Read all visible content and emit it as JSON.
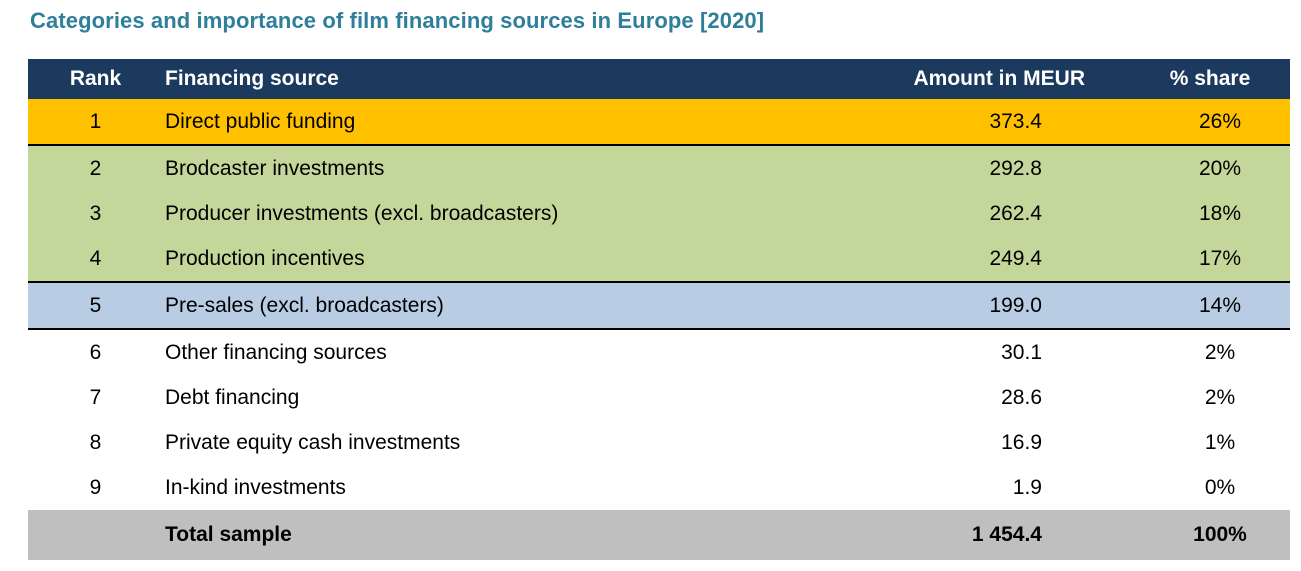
{
  "title": "Categories and importance of film financing sources in Europe [2020]",
  "colors": {
    "title_color": "#2F7E9A",
    "header_bg": "#1C3A5E",
    "header_text": "#FFFFFF",
    "row_orange": "#FFC000",
    "row_green": "#C4D79B",
    "row_blue": "#B8CCE4",
    "row_white": "#FFFFFF",
    "total_bg": "#BFBFBF",
    "border_color": "#000000"
  },
  "table": {
    "columns": [
      "Rank",
      "Financing source",
      "Amount in MEUR",
      "% share"
    ],
    "rows": [
      {
        "rank": "1",
        "source": "Direct public funding",
        "amount": "373.4",
        "share": "26%",
        "band": "orange",
        "border_bottom": true
      },
      {
        "rank": "2",
        "source": "Brodcaster investments",
        "amount": "292.8",
        "share": "20%",
        "band": "green",
        "border_bottom": false
      },
      {
        "rank": "3",
        "source": "Producer investments (excl. broadcasters)",
        "amount": "262.4",
        "share": "18%",
        "band": "green",
        "border_bottom": false
      },
      {
        "rank": "4",
        "source": "Production incentives",
        "amount": "249.4",
        "share": "17%",
        "band": "green",
        "border_bottom": true
      },
      {
        "rank": "5",
        "source": "Pre-sales (excl. broadcasters)",
        "amount": "199.0",
        "share": "14%",
        "band": "blue",
        "border_bottom": true
      },
      {
        "rank": "6",
        "source": "Other financing sources",
        "amount": "30.1",
        "share": "2%",
        "band": "white",
        "border_bottom": false
      },
      {
        "rank": "7",
        "source": "Debt financing",
        "amount": "28.6",
        "share": "2%",
        "band": "white",
        "border_bottom": false
      },
      {
        "rank": "8",
        "source": "Private equity cash investments",
        "amount": "16.9",
        "share": "1%",
        "band": "white",
        "border_bottom": false
      },
      {
        "rank": "9",
        "source": "In-kind investments",
        "amount": "1.9",
        "share": "0%",
        "band": "white",
        "border_bottom": false
      }
    ],
    "total": {
      "label": "Total sample",
      "amount": "1 454.4",
      "share": "100%"
    }
  },
  "chart_data": {
    "type": "table",
    "title": "Categories and importance of film financing sources in Europe [2020]",
    "columns": [
      "Rank",
      "Financing source",
      "Amount in MEUR",
      "% share"
    ],
    "categories": [
      "Direct public funding",
      "Brodcaster investments",
      "Producer investments (excl. broadcasters)",
      "Production incentives",
      "Pre-sales (excl. broadcasters)",
      "Other financing sources",
      "Debt financing",
      "Private equity cash investments",
      "In-kind investments"
    ],
    "amounts_meur": [
      373.4,
      292.8,
      262.4,
      249.4,
      199.0,
      30.1,
      28.6,
      16.9,
      1.9
    ],
    "shares_pct": [
      26,
      20,
      18,
      17,
      14,
      2,
      2,
      1,
      0
    ],
    "total": {
      "label": "Total sample",
      "amount_meur": 1454.4,
      "share_pct": 100
    },
    "row_color_groups": [
      {
        "ranks": [
          1
        ],
        "color": "#FFC000"
      },
      {
        "ranks": [
          2,
          3,
          4
        ],
        "color": "#C4D79B"
      },
      {
        "ranks": [
          5
        ],
        "color": "#B8CCE4"
      },
      {
        "ranks": [
          6,
          7,
          8,
          9
        ],
        "color": "#FFFFFF"
      }
    ]
  }
}
